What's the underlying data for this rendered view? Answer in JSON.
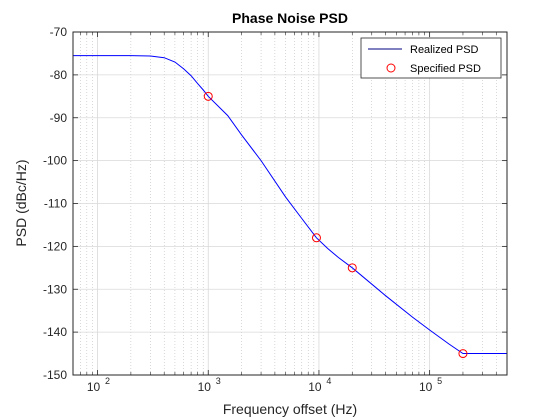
{
  "chart_data": {
    "type": "line",
    "title": "Phase Noise PSD",
    "xlabel": "Frequency offset (Hz)",
    "ylabel": "PSD (dBc/Hz)",
    "xscale": "log",
    "xlim": [
      60,
      500000
    ],
    "ylim": [
      -150,
      -70
    ],
    "yticks": [
      -150,
      -140,
      -130,
      -120,
      -110,
      -100,
      -90,
      -80,
      -70
    ],
    "yticklabels": [
      "-150",
      "-140",
      "-130",
      "-120",
      "-110",
      "-100",
      "-90",
      "-80",
      "-70"
    ],
    "xticks": [
      100,
      1000,
      10000,
      100000
    ],
    "xtick_labels": [
      {
        "base": "10",
        "exp": "2"
      },
      {
        "base": "10",
        "exp": "3"
      },
      {
        "base": "10",
        "exp": "4"
      },
      {
        "base": "10",
        "exp": "5"
      }
    ],
    "grid": true,
    "minor_grid": true,
    "legend_position": "top-right",
    "series": [
      {
        "name": "Realized PSD",
        "style": "line",
        "color": "#0000ff",
        "x": [
          60,
          100,
          200,
          300,
          400,
          500,
          600,
          700,
          800,
          900,
          1000,
          1500,
          2000,
          3000,
          5000,
          7000,
          9500,
          12000,
          15000,
          20000,
          40000,
          70000,
          100000,
          150000,
          200000,
          300000,
          500000
        ],
        "y": [
          -75.5,
          -75.5,
          -75.5,
          -75.6,
          -76.0,
          -77.0,
          -78.6,
          -80.2,
          -82.0,
          -83.5,
          -85,
          -89.5,
          -94,
          -100,
          -108.5,
          -113.5,
          -118,
          -120.5,
          -122.6,
          -125,
          -131.5,
          -136.5,
          -139.5,
          -142.8,
          -145,
          -145,
          -145
        ]
      },
      {
        "name": "Specified PSD",
        "style": "marker",
        "marker": "circle",
        "color": "#ff0000",
        "x": [
          1000,
          9500,
          20000,
          200000
        ],
        "y": [
          -85,
          -118,
          -125,
          -145
        ]
      }
    ]
  }
}
